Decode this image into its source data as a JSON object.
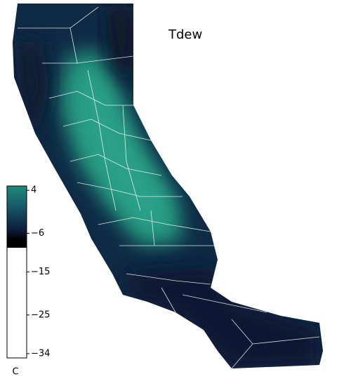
{
  "map": {
    "title": "Tdew",
    "colorbar": {
      "lim": [
        -35,
        5
      ],
      "ticks": [
        4,
        {
          "value": -6,
          "label": "−6"
        },
        {
          "value": -15,
          "label": "−15"
        },
        {
          "value": -25,
          "label": "−25"
        },
        {
          "value": -34,
          "label": "−34"
        }
      ],
      "unit": "C"
    }
  }
}
